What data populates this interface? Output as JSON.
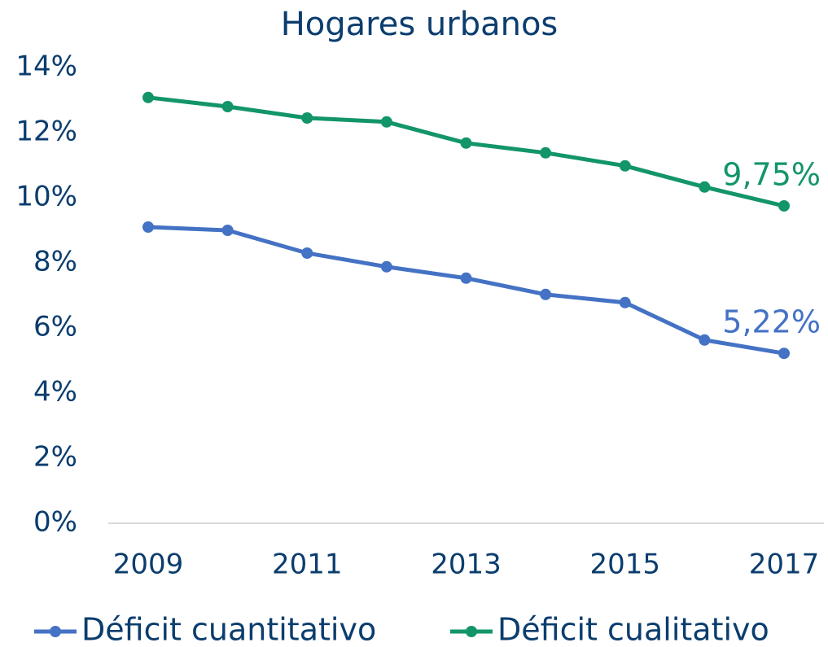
{
  "chart_data": {
    "type": "line",
    "title": "Hogares urbanos",
    "categories": [
      "2009",
      null,
      "2011",
      null,
      "2013",
      null,
      "2015",
      null,
      "2017"
    ],
    "series": [
      {
        "name": "Déficit cuantitativo",
        "color": "#4472c4",
        "values": [
          9.1,
          9.0,
          8.3,
          7.88,
          7.53,
          7.03,
          6.78,
          5.63,
          5.22
        ],
        "value_labels": [
          null,
          null,
          null,
          null,
          null,
          null,
          null,
          null,
          "5,22%"
        ]
      },
      {
        "name": "Déficit cualitativo",
        "color": "#13956a",
        "values": [
          13.08,
          12.8,
          12.45,
          12.33,
          11.68,
          11.38,
          10.98,
          10.33,
          9.75
        ],
        "value_labels": [
          null,
          null,
          null,
          null,
          null,
          null,
          null,
          null,
          "9,75%"
        ]
      }
    ],
    "ylim": [
      0,
      14
    ],
    "yticks": [
      {
        "value": 0,
        "label": "0%"
      },
      {
        "value": 2,
        "label": "2%"
      },
      {
        "value": 4,
        "label": "4%"
      },
      {
        "value": 6,
        "label": "6%"
      },
      {
        "value": 8,
        "label": "8%"
      },
      {
        "value": 10,
        "label": "10%"
      },
      {
        "value": 12,
        "label": "12%"
      },
      {
        "value": 14,
        "label": "14%"
      }
    ],
    "grid": false
  }
}
